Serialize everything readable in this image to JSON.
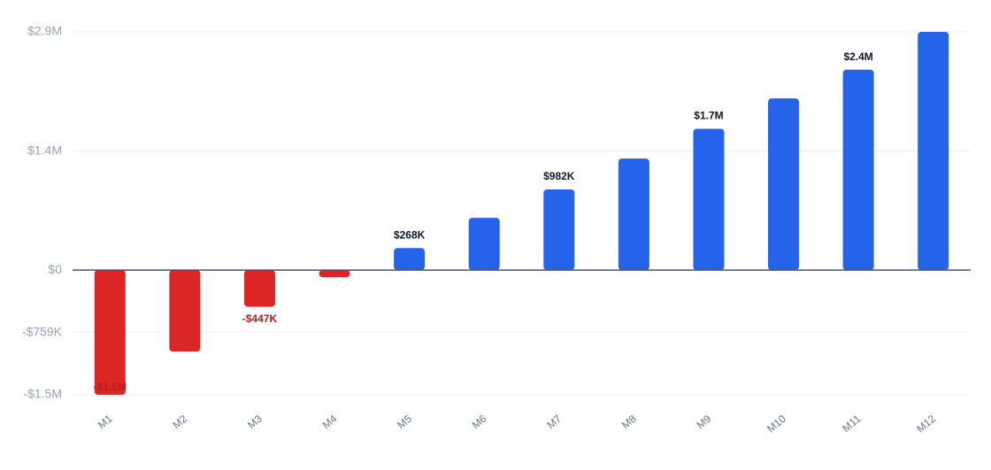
{
  "chart_data": {
    "type": "bar",
    "categories": [
      "M1",
      "M2",
      "M3",
      "M4",
      "M5",
      "M6",
      "M7",
      "M8",
      "M9",
      "M10",
      "M11",
      "M12"
    ],
    "values": [
      -1520000,
      -992000,
      -447000,
      -86000,
      268000,
      636000,
      982000,
      1358000,
      1720000,
      2090000,
      2440000,
      2900000
    ],
    "value_labels": [
      "-$1.5M",
      null,
      "-$447K",
      null,
      "$268K",
      null,
      "$982K",
      null,
      "$1.7M",
      null,
      "$2.4M",
      null
    ],
    "positive_color": "#2563eb",
    "negative_color": "#dc2626",
    "ylim": [
      -1518000,
      2900000
    ],
    "yticks": [
      {
        "value": -1518000,
        "label": "-$1.5M"
      },
      {
        "value": -759000,
        "label": "-$759K"
      },
      {
        "value": 0,
        "label": "$0"
      },
      {
        "value": 1450000,
        "label": "$1.4M"
      },
      {
        "value": 2900000,
        "label": "$2.9M"
      }
    ],
    "grid": true
  }
}
